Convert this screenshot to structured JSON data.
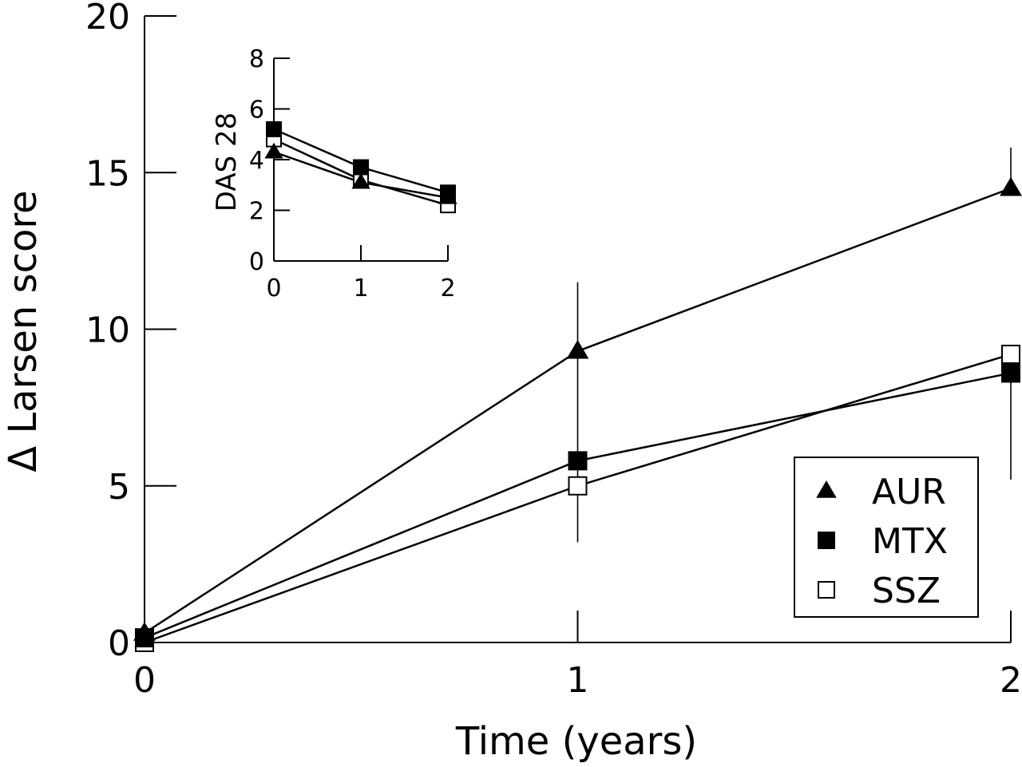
{
  "chart_data": [
    {
      "id": "main",
      "type": "line",
      "xlabel": "Time (years)",
      "ylabel": "Δ Larsen score",
      "xlim": [
        0,
        2
      ],
      "ylim": [
        0,
        20
      ],
      "x_ticks": [
        0,
        1,
        2
      ],
      "y_ticks": [
        0,
        5,
        10,
        15,
        20
      ],
      "x": [
        0,
        1,
        2
      ],
      "series": [
        {
          "name": "AUR",
          "marker": "filled-triangle",
          "values": [
            0.3,
            9.3,
            14.5
          ],
          "error_low": [
            null,
            3.2,
            null
          ],
          "error_high": [
            null,
            11.5,
            15.8
          ]
        },
        {
          "name": "MTX",
          "marker": "filled-square",
          "values": [
            0.15,
            5.8,
            8.6
          ],
          "error_low": [
            null,
            null,
            5.2
          ],
          "error_high": [
            null,
            null,
            null
          ]
        },
        {
          "name": "SSZ",
          "marker": "open-square",
          "values": [
            0.0,
            5.0,
            9.2
          ],
          "error_low": [
            null,
            null,
            null
          ],
          "error_high": [
            null,
            null,
            null
          ]
        }
      ],
      "legend": {
        "placement": "bottom-right",
        "entries": [
          "AUR",
          "MTX",
          "SSZ"
        ]
      }
    },
    {
      "id": "inset",
      "type": "line",
      "xlabel": "",
      "ylabel": "DAS 28",
      "xlim": [
        0,
        2
      ],
      "ylim": [
        0,
        8
      ],
      "x_ticks": [
        0,
        1,
        2
      ],
      "y_ticks": [
        0,
        2,
        4,
        6,
        8
      ],
      "x": [
        0,
        1,
        2
      ],
      "series": [
        {
          "name": "AUR",
          "marker": "filled-triangle",
          "values": [
            4.3,
            3.1,
            2.5
          ]
        },
        {
          "name": "MTX",
          "marker": "filled-square",
          "values": [
            5.2,
            3.7,
            2.7
          ]
        },
        {
          "name": "SSZ",
          "marker": "open-square",
          "values": [
            4.8,
            3.2,
            2.2
          ]
        }
      ]
    }
  ]
}
